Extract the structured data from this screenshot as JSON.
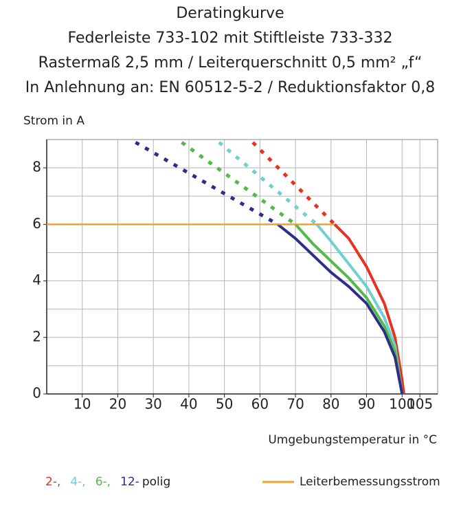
{
  "chart_data": {
    "type": "line",
    "title": "Deratingkurve",
    "subtitles": [
      "Federleiste 733-102 mit Stiftleiste 733-332",
      "Rastermaß 2,5 mm / Leiterquerschnitt 0,5 mm² „f“",
      "In Anlehnung an: EN 60512-5-2 / Reduktionsfaktor 0,8"
    ],
    "y_label": "Strom in A",
    "x_label": "Umgebungstemperatur in °C",
    "xlim": [
      0,
      110
    ],
    "xticks": [
      10,
      20,
      30,
      40,
      50,
      60,
      70,
      80,
      90,
      100,
      105
    ],
    "ylim": [
      0,
      9
    ],
    "yticks": [
      0,
      2,
      4,
      6,
      8
    ],
    "y_minor_grid": [
      1,
      3,
      5,
      7,
      9
    ],
    "grid": true,
    "legend_suffix": "polig",
    "series": [
      {
        "name": "2-,",
        "color": "#e53222",
        "x": [
          81,
          85,
          90,
          95,
          98,
          100,
          100.5
        ],
        "values": [
          6,
          5.5,
          4.5,
          3.2,
          2,
          0.5,
          0
        ],
        "projection": {
          "x": [
            58,
            81
          ],
          "values": [
            8.9,
            6
          ]
        }
      },
      {
        "name": "4-,",
        "color": "#6fcfd1",
        "x": [
          76,
          80,
          85,
          90,
          95,
          98,
          100
        ],
        "values": [
          6,
          5.4,
          4.6,
          3.8,
          2.7,
          1.7,
          0
        ],
        "projection": {
          "x": [
            48.5,
            76
          ],
          "values": [
            8.9,
            6
          ]
        }
      },
      {
        "name": "6-,",
        "color": "#55b84a",
        "x": [
          70,
          75,
          80,
          85,
          90,
          95,
          98,
          100
        ],
        "values": [
          6,
          5.3,
          4.7,
          4.1,
          3.4,
          2.4,
          1.5,
          0
        ],
        "projection": {
          "x": [
            38,
            70
          ],
          "values": [
            8.9,
            6
          ]
        }
      },
      {
        "name": "12-",
        "color": "#2b2f8a",
        "x": [
          65,
          70,
          75,
          80,
          85,
          90,
          95,
          98,
          100
        ],
        "values": [
          6,
          5.5,
          4.9,
          4.3,
          3.8,
          3.2,
          2.2,
          1.3,
          0
        ],
        "projection": {
          "x": [
            25,
            65
          ],
          "values": [
            8.9,
            6
          ]
        }
      },
      {
        "name": "Leiterbemessungsstrom",
        "color": "#f5a02a",
        "x": [
          0,
          81
        ],
        "values": [
          6,
          6
        ]
      }
    ]
  }
}
